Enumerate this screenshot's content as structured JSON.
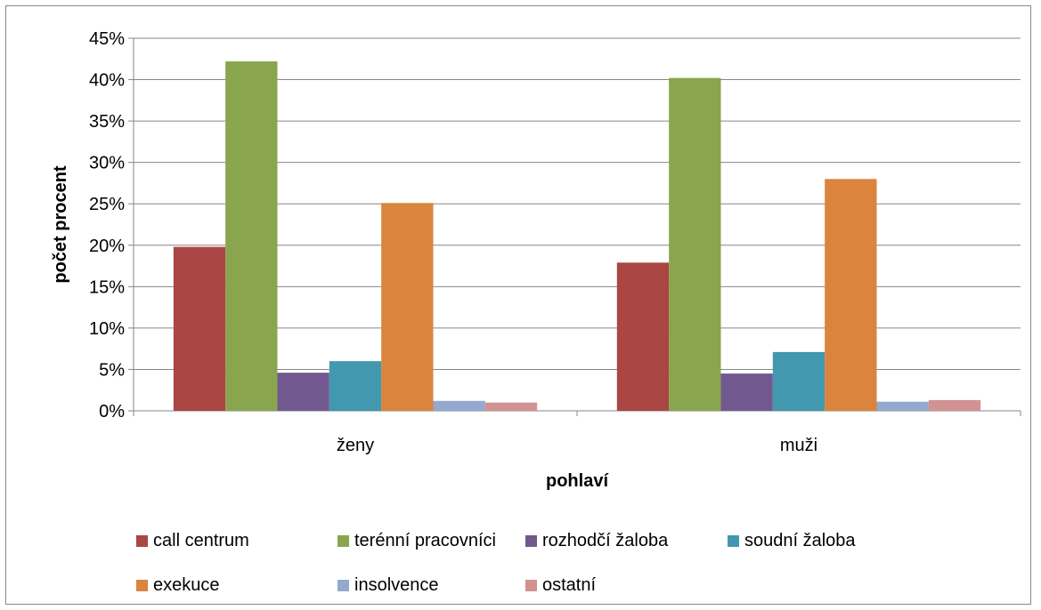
{
  "chart_data": {
    "type": "bar",
    "title": "",
    "xlabel": "pohlaví",
    "ylabel": "počet procent",
    "categories": [
      "ženy",
      "muži"
    ],
    "ylim": [
      0,
      45
    ],
    "yticks": [
      "0%",
      "5%",
      "10%",
      "15%",
      "20%",
      "25%",
      "30%",
      "35%",
      "40%",
      "45%"
    ],
    "grid": true,
    "legend_position": "bottom",
    "series": [
      {
        "name": "call centrum",
        "color": "#AA4643",
        "values": [
          19.8,
          17.9
        ]
      },
      {
        "name": "terénní pracovníci",
        "color": "#89A54E",
        "values": [
          42.2,
          40.2
        ]
      },
      {
        "name": "rozhodčí žaloba",
        "color": "#71588F",
        "values": [
          4.6,
          4.5
        ]
      },
      {
        "name": "soudní žaloba",
        "color": "#4198AF",
        "values": [
          6.0,
          7.1
        ]
      },
      {
        "name": "exekuce",
        "color": "#DB843D",
        "values": [
          25.1,
          28.0
        ]
      },
      {
        "name": "insolvence",
        "color": "#93A9CF",
        "values": [
          1.2,
          1.1
        ]
      },
      {
        "name": "ostatní",
        "color": "#D19392",
        "values": [
          1.0,
          1.3
        ]
      }
    ]
  }
}
